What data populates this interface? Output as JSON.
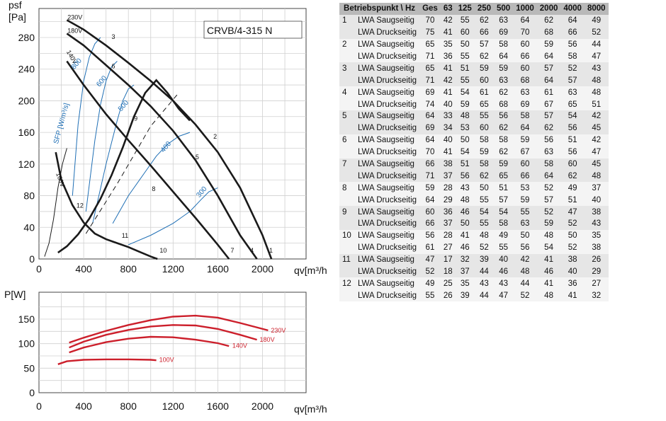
{
  "chart_data": [
    {
      "type": "line",
      "title": "CRVB/4-315 N",
      "xlabel": "qv[m³/h",
      "ylabel_main": "psf",
      "ylabel_unit": "[Pa]",
      "xticks": [
        "0",
        "400",
        "800",
        "1200",
        "1600",
        "2000"
      ],
      "yticks": [
        "0",
        "40",
        "80",
        "120",
        "160",
        "200",
        "240",
        "280"
      ],
      "xlim": [
        0,
        2400
      ],
      "ylim": [
        0,
        310
      ],
      "grid": true,
      "series": [
        {
          "name": "230V",
          "x": [
            250,
            400,
            600,
            800,
            1000,
            1200,
            1400,
            1600,
            1800,
            2000,
            2080
          ],
          "y": [
            302,
            290,
            270,
            248,
            225,
            200,
            170,
            135,
            90,
            30,
            0
          ]
        },
        {
          "name": "180V",
          "x": [
            250,
            400,
            600,
            800,
            1000,
            1200,
            1400,
            1600,
            1800,
            1950
          ],
          "y": [
            285,
            270,
            245,
            220,
            193,
            162,
            125,
            80,
            30,
            0
          ]
        },
        {
          "name": "140V",
          "x": [
            250,
            400,
            600,
            800,
            1000,
            1200,
            1400,
            1600,
            1700
          ],
          "y": [
            250,
            220,
            183,
            150,
            118,
            85,
            52,
            18,
            0
          ]
        },
        {
          "name": "100V",
          "x": [
            150,
            200,
            300,
            400,
            500,
            600,
            700,
            800,
            900,
            1000,
            1060
          ],
          "y": [
            135,
            100,
            68,
            46,
            32,
            25,
            20,
            15,
            9,
            3,
            0
          ]
        },
        {
          "name": "system-9",
          "x": [
            170,
            250,
            350,
            450,
            550,
            650,
            750,
            850,
            950,
            1050,
            1150,
            1250,
            1350
          ],
          "y": [
            8,
            16,
            31,
            51,
            76,
            106,
            141,
            180,
            210,
            226,
            210,
            190,
            175
          ]
        },
        {
          "name": "system-10",
          "x": [
            50,
            90,
            130,
            170,
            210,
            250
          ],
          "y": [
            3,
            20,
            50,
            90,
            120,
            140
          ]
        },
        {
          "name": "system-dashed",
          "x": [
            420,
            700,
            1000,
            1250
          ],
          "y": [
            32,
            95,
            168,
            210
          ]
        }
      ],
      "sfp_lines": [
        {
          "name": "800",
          "x": [
            300,
            350,
            400,
            450,
            500,
            550
          ],
          "y": [
            80,
            170,
            225,
            255,
            272,
            280
          ]
        },
        {
          "name": "600",
          "x": [
            420,
            500,
            550,
            600,
            650,
            700
          ],
          "y": [
            60,
            150,
            195,
            225,
            243,
            250
          ]
        },
        {
          "name": "500",
          "x": [
            480,
            600,
            700,
            750,
            800,
            850
          ],
          "y": [
            45,
            120,
            175,
            200,
            215,
            220
          ]
        },
        {
          "name": "400",
          "x": [
            660,
            800,
            950,
            1050,
            1150,
            1250,
            1350
          ],
          "y": [
            45,
            80,
            110,
            130,
            145,
            155,
            160
          ]
        },
        {
          "name": "300",
          "x": [
            800,
            1000,
            1200,
            1350,
            1450,
            1520,
            1600
          ],
          "y": [
            18,
            30,
            45,
            60,
            75,
            85,
            90
          ]
        }
      ],
      "labels": {
        "sfp_axis": "SFP [W/m³/s]",
        "points": [
          "1",
          "2",
          "3",
          "4",
          "5",
          "6",
          "7",
          "8",
          "9",
          "10",
          "11",
          "12"
        ]
      }
    },
    {
      "type": "line",
      "title": "",
      "xlabel": "qv[m³/h",
      "ylabel": "P[W]",
      "xticks": [
        "0",
        "400",
        "800",
        "1200",
        "1600",
        "2000"
      ],
      "yticks": [
        "0",
        "50",
        "100",
        "150"
      ],
      "xlim": [
        0,
        2400
      ],
      "ylim": [
        0,
        175
      ],
      "grid": true,
      "series": [
        {
          "name": "230V",
          "x": [
            270,
            400,
            600,
            800,
            1000,
            1200,
            1400,
            1600,
            1800,
            2050
          ],
          "y": [
            102,
            112,
            126,
            138,
            148,
            155,
            157,
            153,
            142,
            127
          ]
        },
        {
          "name": "180V",
          "x": [
            270,
            400,
            600,
            800,
            1000,
            1200,
            1400,
            1600,
            1800,
            1950
          ],
          "y": [
            92,
            104,
            118,
            128,
            135,
            138,
            137,
            130,
            118,
            108
          ]
        },
        {
          "name": "140V",
          "x": [
            270,
            400,
            600,
            800,
            1000,
            1200,
            1400,
            1600,
            1700
          ],
          "y": [
            82,
            92,
            103,
            110,
            114,
            113,
            108,
            101,
            95
          ]
        },
        {
          "name": "100V",
          "x": [
            170,
            250,
            400,
            600,
            800,
            1000,
            1050
          ],
          "y": [
            58,
            64,
            67,
            68,
            68,
            67,
            66
          ]
        }
      ]
    }
  ],
  "table": {
    "headers": [
      "Betriebspunkt \\ Hz",
      "Ges",
      "63",
      "125",
      "250",
      "500",
      "1000",
      "2000",
      "4000",
      "8000"
    ],
    "rows": [
      {
        "op": "1",
        "label": "LWA Saugseitig",
        "values": [
          "70",
          "42",
          "55",
          "62",
          "63",
          "64",
          "62",
          "64",
          "49"
        ]
      },
      {
        "op": "",
        "label": "LWA Druckseitig",
        "values": [
          "75",
          "41",
          "60",
          "66",
          "69",
          "70",
          "68",
          "66",
          "52"
        ]
      },
      {
        "op": "2",
        "label": "LWA Saugseitig",
        "values": [
          "65",
          "35",
          "50",
          "57",
          "58",
          "60",
          "59",
          "56",
          "44"
        ]
      },
      {
        "op": "",
        "label": "LWA Druckseitig",
        "values": [
          "71",
          "36",
          "55",
          "62",
          "64",
          "66",
          "64",
          "58",
          "47"
        ]
      },
      {
        "op": "3",
        "label": "LWA Saugseitig",
        "values": [
          "65",
          "41",
          "51",
          "59",
          "59",
          "60",
          "57",
          "52",
          "43"
        ]
      },
      {
        "op": "",
        "label": "LWA Druckseitig",
        "values": [
          "71",
          "42",
          "55",
          "60",
          "63",
          "68",
          "64",
          "57",
          "48"
        ]
      },
      {
        "op": "4",
        "label": "LWA Saugseitig",
        "values": [
          "69",
          "41",
          "54",
          "61",
          "62",
          "63",
          "61",
          "63",
          "48"
        ]
      },
      {
        "op": "",
        "label": "LWA Druckseitig",
        "values": [
          "74",
          "40",
          "59",
          "65",
          "68",
          "69",
          "67",
          "65",
          "51"
        ]
      },
      {
        "op": "5",
        "label": "LWA Saugseitig",
        "values": [
          "64",
          "33",
          "48",
          "55",
          "56",
          "58",
          "57",
          "54",
          "42"
        ]
      },
      {
        "op": "",
        "label": "LWA Druckseitig",
        "values": [
          "69",
          "34",
          "53",
          "60",
          "62",
          "64",
          "62",
          "56",
          "45"
        ]
      },
      {
        "op": "6",
        "label": "LWA Saugseitig",
        "values": [
          "64",
          "40",
          "50",
          "58",
          "58",
          "59",
          "56",
          "51",
          "42"
        ]
      },
      {
        "op": "",
        "label": "LWA Druckseitig",
        "values": [
          "70",
          "41",
          "54",
          "59",
          "62",
          "67",
          "63",
          "56",
          "47"
        ]
      },
      {
        "op": "7",
        "label": "LWA Saugseitig",
        "values": [
          "66",
          "38",
          "51",
          "58",
          "59",
          "60",
          "58",
          "60",
          "45"
        ]
      },
      {
        "op": "",
        "label": "LWA Druckseitig",
        "values": [
          "71",
          "37",
          "56",
          "62",
          "65",
          "66",
          "64",
          "62",
          "48"
        ]
      },
      {
        "op": "8",
        "label": "LWA Saugseitig",
        "values": [
          "59",
          "28",
          "43",
          "50",
          "51",
          "53",
          "52",
          "49",
          "37"
        ]
      },
      {
        "op": "",
        "label": "LWA Druckseitig",
        "values": [
          "64",
          "29",
          "48",
          "55",
          "57",
          "59",
          "57",
          "51",
          "40"
        ]
      },
      {
        "op": "9",
        "label": "LWA Saugseitig",
        "values": [
          "60",
          "36",
          "46",
          "54",
          "54",
          "55",
          "52",
          "47",
          "38"
        ]
      },
      {
        "op": "",
        "label": "LWA Druckseitig",
        "values": [
          "66",
          "37",
          "50",
          "55",
          "58",
          "63",
          "59",
          "52",
          "43"
        ]
      },
      {
        "op": "10",
        "label": "LWA Saugseitig",
        "values": [
          "56",
          "28",
          "41",
          "48",
          "49",
          "50",
          "48",
          "50",
          "35"
        ]
      },
      {
        "op": "",
        "label": "LWA Druckseitig",
        "values": [
          "61",
          "27",
          "46",
          "52",
          "55",
          "56",
          "54",
          "52",
          "38"
        ]
      },
      {
        "op": "11",
        "label": "LWA Saugseitig",
        "values": [
          "47",
          "17",
          "32",
          "39",
          "40",
          "42",
          "41",
          "38",
          "26"
        ]
      },
      {
        "op": "",
        "label": "LWA Druckseitig",
        "values": [
          "52",
          "18",
          "37",
          "44",
          "46",
          "48",
          "46",
          "40",
          "29"
        ]
      },
      {
        "op": "12",
        "label": "LWA Saugseitig",
        "values": [
          "49",
          "25",
          "35",
          "43",
          "43",
          "44",
          "41",
          "36",
          "27"
        ]
      },
      {
        "op": "",
        "label": "LWA Druckseitig",
        "values": [
          "55",
          "26",
          "39",
          "44",
          "47",
          "52",
          "48",
          "41",
          "32"
        ]
      }
    ]
  },
  "colors": {
    "curve": "#1a1a1a",
    "sfp": "#1f6fb5",
    "power": "#cc1f2b",
    "grid": "#d0d0d0"
  }
}
